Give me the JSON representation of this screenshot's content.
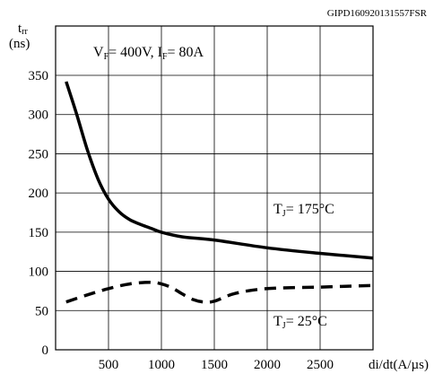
{
  "header": {
    "code": "GIPD160920131557FSR"
  },
  "chart_data": {
    "type": "line",
    "title": "",
    "xlabel": "di/dt(A/µs)",
    "ylabel": {
      "main": "t",
      "sub": "rr",
      "unit": "(ns)"
    },
    "xlim": [
      0,
      3000
    ],
    "ylim": [
      0,
      350
    ],
    "x_ticks": [
      500,
      1000,
      1500,
      2000,
      2500
    ],
    "y_ticks": [
      0,
      50,
      100,
      150,
      200,
      250,
      300,
      350
    ],
    "grid": true,
    "conditions": {
      "vf_main": "V",
      "vf_sub": "F",
      "vf_value": "= 400V,",
      "if_main": "I",
      "if_sub": "F",
      "if_value": "= 80A"
    },
    "series": [
      {
        "name": "TJ= 175°C",
        "label": {
          "main": "T",
          "sub": "J",
          "value": "= 175°C"
        },
        "style": "solid",
        "x": [
          100,
          200,
          300,
          400,
          500,
          600,
          700,
          800,
          900,
          1000,
          1200,
          1500,
          2000,
          2500,
          3000
        ],
        "values": [
          342,
          300,
          255,
          218,
          192,
          176,
          166,
          160,
          155,
          150,
          144,
          140,
          130,
          123,
          117
        ]
      },
      {
        "name": "TJ= 25°C",
        "label": {
          "main": "T",
          "sub": "J",
          "value": "= 25°C"
        },
        "style": "dashed",
        "x": [
          100,
          300,
          500,
          700,
          900,
          1000,
          1100,
          1200,
          1300,
          1400,
          1500,
          1700,
          2000,
          2500,
          3000
        ],
        "values": [
          61,
          70,
          78,
          84,
          86,
          84,
          79,
          71,
          64,
          61,
          62,
          72,
          78,
          80,
          82
        ]
      }
    ]
  }
}
